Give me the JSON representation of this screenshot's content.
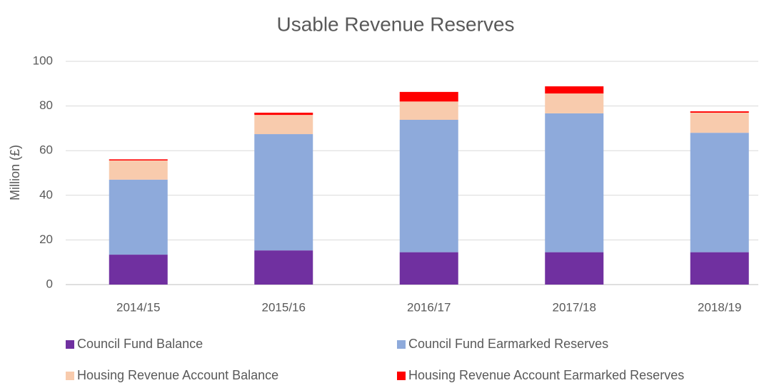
{
  "chart_data": {
    "type": "stacked_bar",
    "title": "Usable Revenue Reserves",
    "y_label": "Million (£)",
    "categories": [
      "2014/15",
      "2015/16",
      "2016/17",
      "2017/18",
      "2018/19"
    ],
    "series": [
      {
        "name": "Council Fund Balance",
        "color": "#7030a0",
        "values": [
          13.4,
          15.3,
          14.5,
          14.5,
          14.5
        ]
      },
      {
        "name": "Council Fund Earmarked Reserves",
        "color": "#8eaadb",
        "values": [
          33.6,
          52.1,
          59.3,
          62.2,
          53.5
        ]
      },
      {
        "name": "Housing Revenue Account Balance",
        "color": "#f8cbad",
        "values": [
          8.6,
          8.6,
          8.2,
          8.9,
          9.0
        ]
      },
      {
        "name": "Housing Revenue Account Earmarked Reserves",
        "color": "#ff0000",
        "values": [
          0.5,
          1.0,
          4.3,
          3.2,
          0.6
        ]
      }
    ],
    "ylim": [
      0,
      100
    ],
    "yticks": [
      0,
      20,
      40,
      60,
      80,
      100
    ],
    "grid": true
  }
}
